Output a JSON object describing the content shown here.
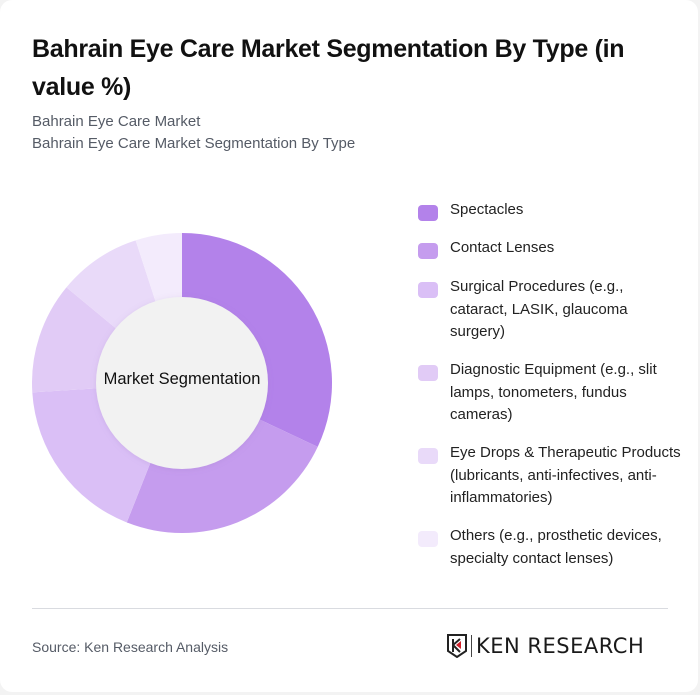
{
  "header": {
    "title": "Bahrain Eye Care Market Segmentation By Type (in value %)",
    "subtitle_1": "Bahrain Eye Care Market",
    "subtitle_2": "Bahrain Eye Care Market Segmentation By Type"
  },
  "chart": {
    "center_label": "Market Segmentation"
  },
  "legend": {
    "items": [
      {
        "label": "Spectacles",
        "color": "#b382ea"
      },
      {
        "label": "Contact Lenses",
        "color": "#c59cee"
      },
      {
        "label": "Surgical Procedures (e.g., cataract, LASIK, glaucoma surgery)",
        "color": "#dabff6"
      },
      {
        "label": "Diagnostic Equipment (e.g., slit lamps, tonometers, fundus cameras)",
        "color": "#e1cbf6"
      },
      {
        "label": "Eye Drops & Therapeutic Products (lubricants, anti-infectives, anti-inflammatories)",
        "color": "#e9daf9"
      },
      {
        "label": "Others (e.g., prosthetic devices, specialty contact lenses)",
        "color": "#f3ebfc"
      }
    ]
  },
  "footer": {
    "source": "Source: Ken Research Analysis",
    "logo_text": "KEN RESEARCH"
  },
  "chart_data": {
    "type": "pie",
    "variant": "donut",
    "title": "Bahrain Eye Care Market Segmentation By Type (in value %)",
    "center_label": "Market Segmentation",
    "categories": [
      "Spectacles",
      "Contact Lenses",
      "Surgical Procedures (e.g., cataract, LASIK, glaucoma surgery)",
      "Diagnostic Equipment (e.g., slit lamps, tonometers, fundus cameras)",
      "Eye Drops & Therapeutic Products (lubricants, anti-infectives, anti-inflammatories)",
      "Others (e.g., prosthetic devices, specialty contact lenses)"
    ],
    "values": [
      32,
      24,
      18,
      12,
      9,
      5
    ],
    "colors": [
      "#b382ea",
      "#c59cee",
      "#dabff6",
      "#e1cbf6",
      "#e9daf9",
      "#f3ebfc"
    ],
    "legend_position": "right",
    "start_angle_deg": 0,
    "direction": "clockwise"
  }
}
